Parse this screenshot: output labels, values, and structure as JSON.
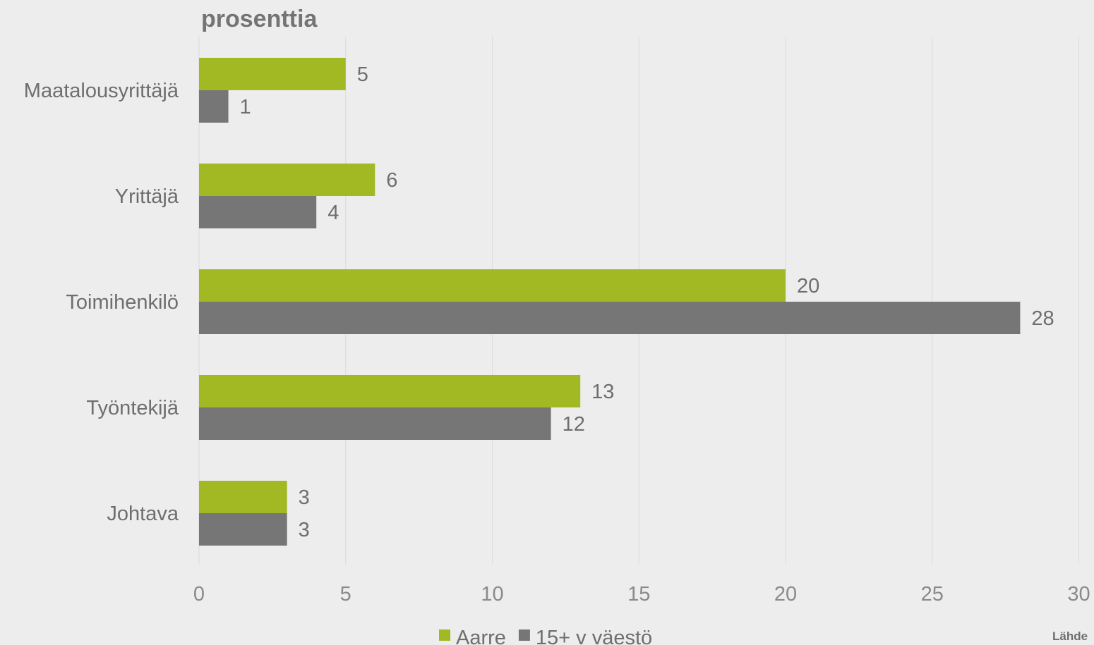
{
  "chart_data": {
    "type": "bar",
    "orientation": "horizontal",
    "unit_label": "prosenttia",
    "categories": [
      "Maatalousyrittäjä",
      "Yrittäjä",
      "Toimihenkilö",
      "Työntekijä",
      "Johtava"
    ],
    "series": [
      {
        "name": "Aarre",
        "color": "#a2b923",
        "values": [
          5,
          6,
          20,
          13,
          3
        ]
      },
      {
        "name": "15+ v väestö",
        "color": "#767676",
        "values": [
          1,
          4,
          28,
          12,
          3
        ]
      }
    ],
    "xlim": [
      0,
      30
    ],
    "xticks": [
      0,
      5,
      10,
      15,
      20,
      25,
      30
    ],
    "grid": true,
    "legend_position": "bottom",
    "source_text": "Lähde"
  }
}
